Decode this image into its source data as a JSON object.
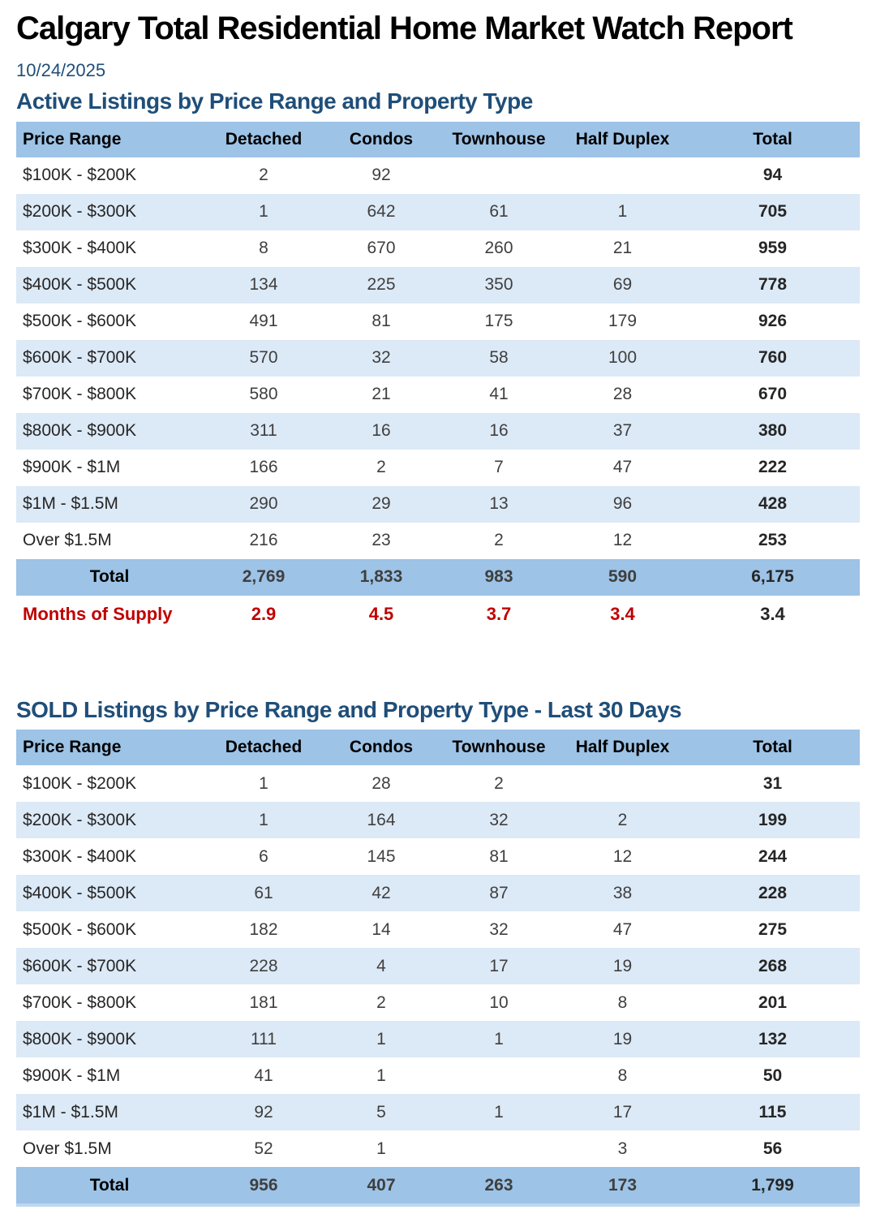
{
  "report": {
    "title": "Calgary Total Residential Home Market Watch Report",
    "date": "10/24/2025"
  },
  "colors": {
    "header_row_bg": "#9DC3E6",
    "alt_row_bg": "#DCE9F6",
    "total_row_bg": "#9DC3E6",
    "heading_navy": "#1F4E79",
    "supply_red": "#C00000",
    "bottom_strip_blue": "#BDD7EE"
  },
  "tables": [
    {
      "heading": "Active Listings by Price Range and Property Type",
      "columns": [
        "Price Range",
        "Detached",
        "Condos",
        "Townhouse",
        "Half Duplex",
        "Total"
      ],
      "rows": [
        {
          "label": "$100K - $200K",
          "values": [
            "2",
            "92",
            "",
            "",
            "94"
          ]
        },
        {
          "label": "$200K - $300K",
          "values": [
            "1",
            "642",
            "61",
            "1",
            "705"
          ]
        },
        {
          "label": "$300K - $400K",
          "values": [
            "8",
            "670",
            "260",
            "21",
            "959"
          ]
        },
        {
          "label": "$400K - $500K",
          "values": [
            "134",
            "225",
            "350",
            "69",
            "778"
          ]
        },
        {
          "label": "$500K - $600K",
          "values": [
            "491",
            "81",
            "175",
            "179",
            "926"
          ]
        },
        {
          "label": "$600K - $700K",
          "values": [
            "570",
            "32",
            "58",
            "100",
            "760"
          ]
        },
        {
          "label": "$700K - $800K",
          "values": [
            "580",
            "21",
            "41",
            "28",
            "670"
          ]
        },
        {
          "label": "$800K - $900K",
          "values": [
            "311",
            "16",
            "16",
            "37",
            "380"
          ]
        },
        {
          "label": "$900K - $1M",
          "values": [
            "166",
            "2",
            "7",
            "47",
            "222"
          ]
        },
        {
          "label": "$1M - $1.5M",
          "values": [
            "290",
            "29",
            "13",
            "96",
            "428"
          ]
        },
        {
          "label": "Over $1.5M",
          "values": [
            "216",
            "23",
            "2",
            "12",
            "253"
          ]
        }
      ],
      "total_row": {
        "label": "Total",
        "values": [
          "2,769",
          "1,833",
          "983",
          "590",
          "6,175"
        ]
      },
      "supply_row": {
        "label": "Months of Supply",
        "values": [
          "2.9",
          "4.5",
          "3.7",
          "3.4",
          "3.4"
        ]
      }
    },
    {
      "heading": "SOLD Listings by Price Range and Property Type - Last 30 Days",
      "columns": [
        "Price Range",
        "Detached",
        "Condos",
        "Townhouse",
        "Half Duplex",
        "Total"
      ],
      "rows": [
        {
          "label": "$100K - $200K",
          "values": [
            "1",
            "28",
            "2",
            "",
            "31"
          ]
        },
        {
          "label": "$200K - $300K",
          "values": [
            "1",
            "164",
            "32",
            "2",
            "199"
          ]
        },
        {
          "label": "$300K - $400K",
          "values": [
            "6",
            "145",
            "81",
            "12",
            "244"
          ]
        },
        {
          "label": "$400K - $500K",
          "values": [
            "61",
            "42",
            "87",
            "38",
            "228"
          ]
        },
        {
          "label": "$500K - $600K",
          "values": [
            "182",
            "14",
            "32",
            "47",
            "275"
          ]
        },
        {
          "label": "$600K - $700K",
          "values": [
            "228",
            "4",
            "17",
            "19",
            "268"
          ]
        },
        {
          "label": "$700K - $800K",
          "values": [
            "181",
            "2",
            "10",
            "8",
            "201"
          ]
        },
        {
          "label": "$800K - $900K",
          "values": [
            "111",
            "1",
            "1",
            "19",
            "132"
          ]
        },
        {
          "label": "$900K - $1M",
          "values": [
            "41",
            "1",
            "",
            "8",
            "50"
          ]
        },
        {
          "label": "$1M - $1.5M",
          "values": [
            "92",
            "5",
            "1",
            "17",
            "115"
          ]
        },
        {
          "label": "Over $1.5M",
          "values": [
            "52",
            "1",
            "",
            "3",
            "56"
          ]
        }
      ],
      "total_row": {
        "label": "Total",
        "values": [
          "956",
          "407",
          "263",
          "173",
          "1,799"
        ]
      }
    }
  ]
}
